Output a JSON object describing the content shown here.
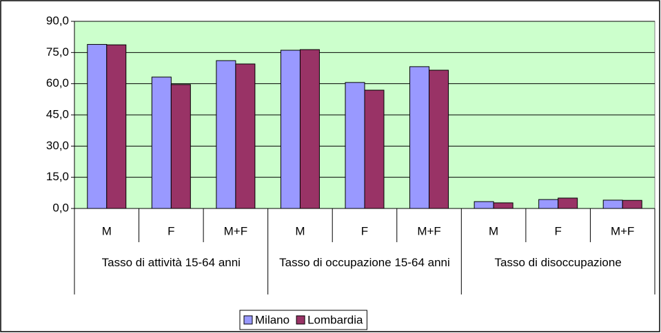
{
  "chart_data": {
    "type": "bar",
    "categories": [
      "M",
      "F",
      "M+F",
      "M",
      "F",
      "M+F",
      "M",
      "F",
      "M+F"
    ],
    "groups": [
      "Tasso di attività 15-64 anni",
      "Tasso di occupazione 15-64 anni",
      "Tasso di disoccupazione"
    ],
    "series": [
      {
        "name": "Milano",
        "color": "#9999ff",
        "values": [
          78.9,
          63.2,
          71.1,
          76.1,
          60.6,
          68.2,
          3.3,
          4.3,
          4.0
        ]
      },
      {
        "name": "Lombardia",
        "color": "#993366",
        "values": [
          78.7,
          59.6,
          69.5,
          76.4,
          56.9,
          66.5,
          2.7,
          5.0,
          3.9
        ]
      }
    ],
    "ylim": [
      0,
      90
    ],
    "yticks": [
      {
        "value": 0,
        "label": "0,0"
      },
      {
        "value": 15,
        "label": "15,0"
      },
      {
        "value": 30,
        "label": "30,0"
      },
      {
        "value": 45,
        "label": "45,0"
      },
      {
        "value": 60,
        "label": "60,0"
      },
      {
        "value": 75,
        "label": "75,0"
      },
      {
        "value": 90,
        "label": "90,0"
      }
    ],
    "grid": true,
    "legend": "bottom",
    "plot_background": "#ccffcc"
  }
}
